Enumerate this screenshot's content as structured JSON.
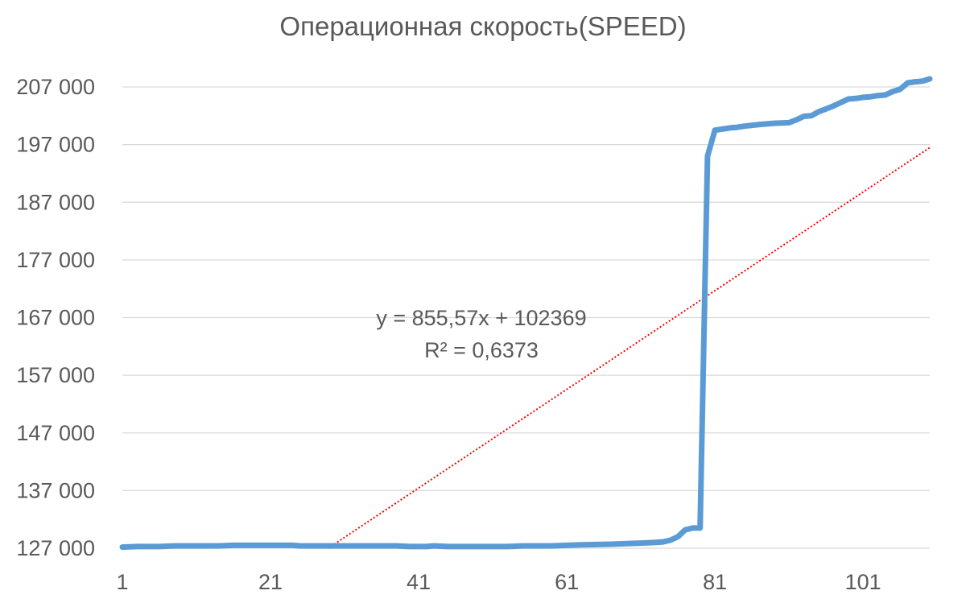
{
  "chart_data": {
    "type": "line",
    "title": "Операционная скорость(SPEED)",
    "xlim": [
      1,
      110
    ],
    "ylim": [
      127000,
      208500
    ],
    "y_ticks": [
      127000,
      137000,
      147000,
      157000,
      167000,
      177000,
      187000,
      197000,
      207000
    ],
    "y_tick_labels": [
      "127 000",
      "137 000",
      "147 000",
      "157 000",
      "167 000",
      "177 000",
      "187 000",
      "197 000",
      "207 000"
    ],
    "x_ticks": [
      1,
      21,
      41,
      61,
      81,
      101
    ],
    "x_tick_labels": [
      "1",
      "21",
      "41",
      "61",
      "81",
      "101"
    ],
    "grid": "horizontal",
    "colors": {
      "series": "#5B9BD5",
      "trendline": "#FF0000",
      "grid": "#D9D9D9",
      "text": "#595959"
    },
    "series": [
      {
        "points": [
          [
            1,
            127200
          ],
          [
            3,
            127300
          ],
          [
            6,
            127300
          ],
          [
            8,
            127400
          ],
          [
            14,
            127400
          ],
          [
            16,
            127500
          ],
          [
            24,
            127500
          ],
          [
            25,
            127400
          ],
          [
            33,
            127400
          ],
          [
            38,
            127400
          ],
          [
            40,
            127300
          ],
          [
            42,
            127300
          ],
          [
            43,
            127400
          ],
          [
            45,
            127300
          ],
          [
            53,
            127300
          ],
          [
            55,
            127400
          ],
          [
            59,
            127400
          ],
          [
            61,
            127500
          ],
          [
            63,
            127600
          ],
          [
            67,
            127700
          ],
          [
            69,
            127800
          ],
          [
            71,
            127900
          ],
          [
            73,
            128000
          ],
          [
            74,
            128100
          ],
          [
            75,
            128400
          ],
          [
            76,
            129000
          ],
          [
            77,
            130200
          ],
          [
            78,
            130500
          ],
          [
            79,
            130500
          ],
          [
            80,
            195000
          ],
          [
            81,
            199500
          ],
          [
            83,
            199900
          ],
          [
            84,
            200000
          ],
          [
            85,
            200200
          ],
          [
            87,
            200500
          ],
          [
            89,
            200700
          ],
          [
            91,
            200800
          ],
          [
            92,
            201300
          ],
          [
            93,
            201900
          ],
          [
            94,
            202000
          ],
          [
            95,
            202700
          ],
          [
            96,
            203200
          ],
          [
            97,
            203700
          ],
          [
            98,
            204300
          ],
          [
            99,
            204900
          ],
          [
            100,
            205000
          ],
          [
            101,
            205200
          ],
          [
            102,
            205300
          ],
          [
            103,
            205500
          ],
          [
            104,
            205600
          ],
          [
            105,
            206200
          ],
          [
            106,
            206600
          ],
          [
            107,
            207700
          ],
          [
            108,
            207900
          ],
          [
            109,
            208000
          ],
          [
            110,
            208400
          ]
        ]
      }
    ],
    "trendline": {
      "type": "linear",
      "slope": 855.57,
      "intercept": 102369,
      "equation_label": "y = 855,57x + 102369",
      "r2_label": "R² = 0,6373"
    }
  }
}
